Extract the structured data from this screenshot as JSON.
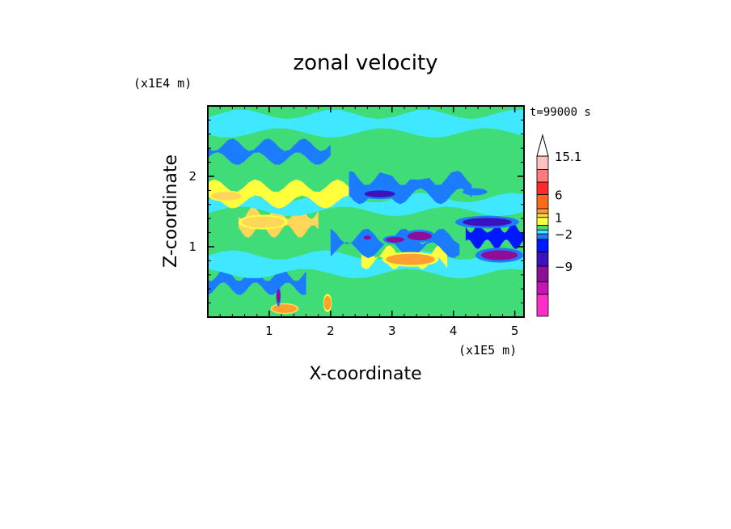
{
  "chart_data": {
    "type": "heatmap",
    "title": "zonal velocity",
    "xlabel": "X-coordinate",
    "ylabel": "Z-coordinate",
    "x_scale_label": "(x1E5 m)",
    "y_scale_label": "(x1E4 m)",
    "time_label": "t=99000 s",
    "xlim": [
      0,
      5.15
    ],
    "ylim": [
      0,
      3.0
    ],
    "x_ticks": [
      1,
      2,
      3,
      4,
      5
    ],
    "y_ticks": [
      1,
      2
    ],
    "x_tick_labels": [
      "1",
      "2",
      "3",
      "4",
      "5"
    ],
    "y_tick_labels": [
      "1",
      "2"
    ],
    "colorbar": {
      "levels_bottom_to_top": [
        {
          "color": "#ff2ec8"
        },
        {
          "color": "#c416b4"
        },
        {
          "color": "#8e0e9a"
        },
        {
          "color": "#3a12c0"
        },
        {
          "color": "#0018ff"
        },
        {
          "color": "#1c7cff"
        },
        {
          "color": "#3fe8ff"
        },
        {
          "color": "#3fdc78"
        },
        {
          "color": "#ffff3c"
        },
        {
          "color": "#ffd65a"
        },
        {
          "color": "#ffa030"
        },
        {
          "color": "#ff6a1a"
        },
        {
          "color": "#ff2a2a"
        },
        {
          "color": "#ff7a7a"
        },
        {
          "color": "#ffc0c0"
        }
      ],
      "labels": [
        {
          "text": "15.1",
          "value": 15.1
        },
        {
          "text": "6",
          "value": 6
        },
        {
          "text": "1",
          "value": 1
        },
        {
          "text": "−2",
          "value": -2
        },
        {
          "text": "−9",
          "value": -9
        }
      ],
      "extend_top": true
    },
    "field": {
      "background_value": 0.5,
      "bands": [
        {
          "z": 0.2,
          "x0": 0,
          "x1": 5.15,
          "value": 0.5
        },
        {
          "z": 0.5,
          "x0": 0,
          "x1": 1.6,
          "value": -1.5
        },
        {
          "z": 0.55,
          "x0": 3.3,
          "x1": 5.15,
          "value": 0.8
        },
        {
          "z": 0.75,
          "x0": 0,
          "x1": 5.15,
          "value": -0.5
        },
        {
          "z": 0.85,
          "x0": 2.5,
          "x1": 3.9,
          "value": 1.5
        },
        {
          "z": 1.05,
          "x0": 2.0,
          "x1": 4.1,
          "value": -1.5
        },
        {
          "z": 1.15,
          "x0": 4.2,
          "x1": 5.15,
          "value": -2.5
        },
        {
          "z": 1.35,
          "x0": 0.5,
          "x1": 1.8,
          "value": 2
        },
        {
          "z": 1.4,
          "x0": 3.3,
          "x1": 5.15,
          "value": 0.8
        },
        {
          "z": 1.6,
          "x0": 0,
          "x1": 5.15,
          "value": -0.5
        },
        {
          "z": 1.75,
          "x0": 0,
          "x1": 2.3,
          "value": 1.5
        },
        {
          "z": 1.85,
          "x0": 2.3,
          "x1": 4.3,
          "value": -1.5
        },
        {
          "z": 2.1,
          "x0": 0,
          "x1": 5.15,
          "value": 0.5
        },
        {
          "z": 2.35,
          "x0": 0,
          "x1": 2.0,
          "value": -1.5
        },
        {
          "z": 2.5,
          "x0": 2.0,
          "x1": 5.15,
          "value": 0.5
        },
        {
          "z": 2.75,
          "x0": 0,
          "x1": 5.15,
          "value": -0.5
        }
      ],
      "blobs": [
        {
          "x": 0.9,
          "z": 1.35,
          "rx": 0.35,
          "rz": 0.08,
          "value": 2
        },
        {
          "x": 3.3,
          "z": 0.82,
          "rx": 0.4,
          "rz": 0.08,
          "value": 3
        },
        {
          "x": 3.05,
          "z": 1.1,
          "rx": 0.15,
          "rz": 0.04,
          "value": -6
        },
        {
          "x": 2.6,
          "z": 1.13,
          "rx": 0.06,
          "rz": 0.03,
          "value": -6
        },
        {
          "x": 3.45,
          "z": 1.15,
          "rx": 0.2,
          "rz": 0.06,
          "value": -7
        },
        {
          "x": 4.75,
          "z": 0.88,
          "rx": 0.3,
          "rz": 0.07,
          "value": -7
        },
        {
          "x": 4.55,
          "z": 1.35,
          "rx": 0.4,
          "rz": 0.06,
          "value": -5
        },
        {
          "x": 2.8,
          "z": 1.75,
          "rx": 0.25,
          "rz": 0.05,
          "value": -4
        },
        {
          "x": 1.25,
          "z": 0.12,
          "rx": 0.2,
          "rz": 0.06,
          "value": 4
        },
        {
          "x": 1.15,
          "z": 0.3,
          "rx": 0.03,
          "rz": 0.1,
          "value": -7
        },
        {
          "x": 1.95,
          "z": 0.2,
          "rx": 0.06,
          "rz": 0.1,
          "value": 3
        },
        {
          "x": 0.3,
          "z": 1.72,
          "rx": 0.25,
          "rz": 0.06,
          "value": 2
        },
        {
          "x": 4.35,
          "z": 1.78,
          "rx": 0.2,
          "rz": 0.05,
          "value": -2
        }
      ]
    }
  }
}
